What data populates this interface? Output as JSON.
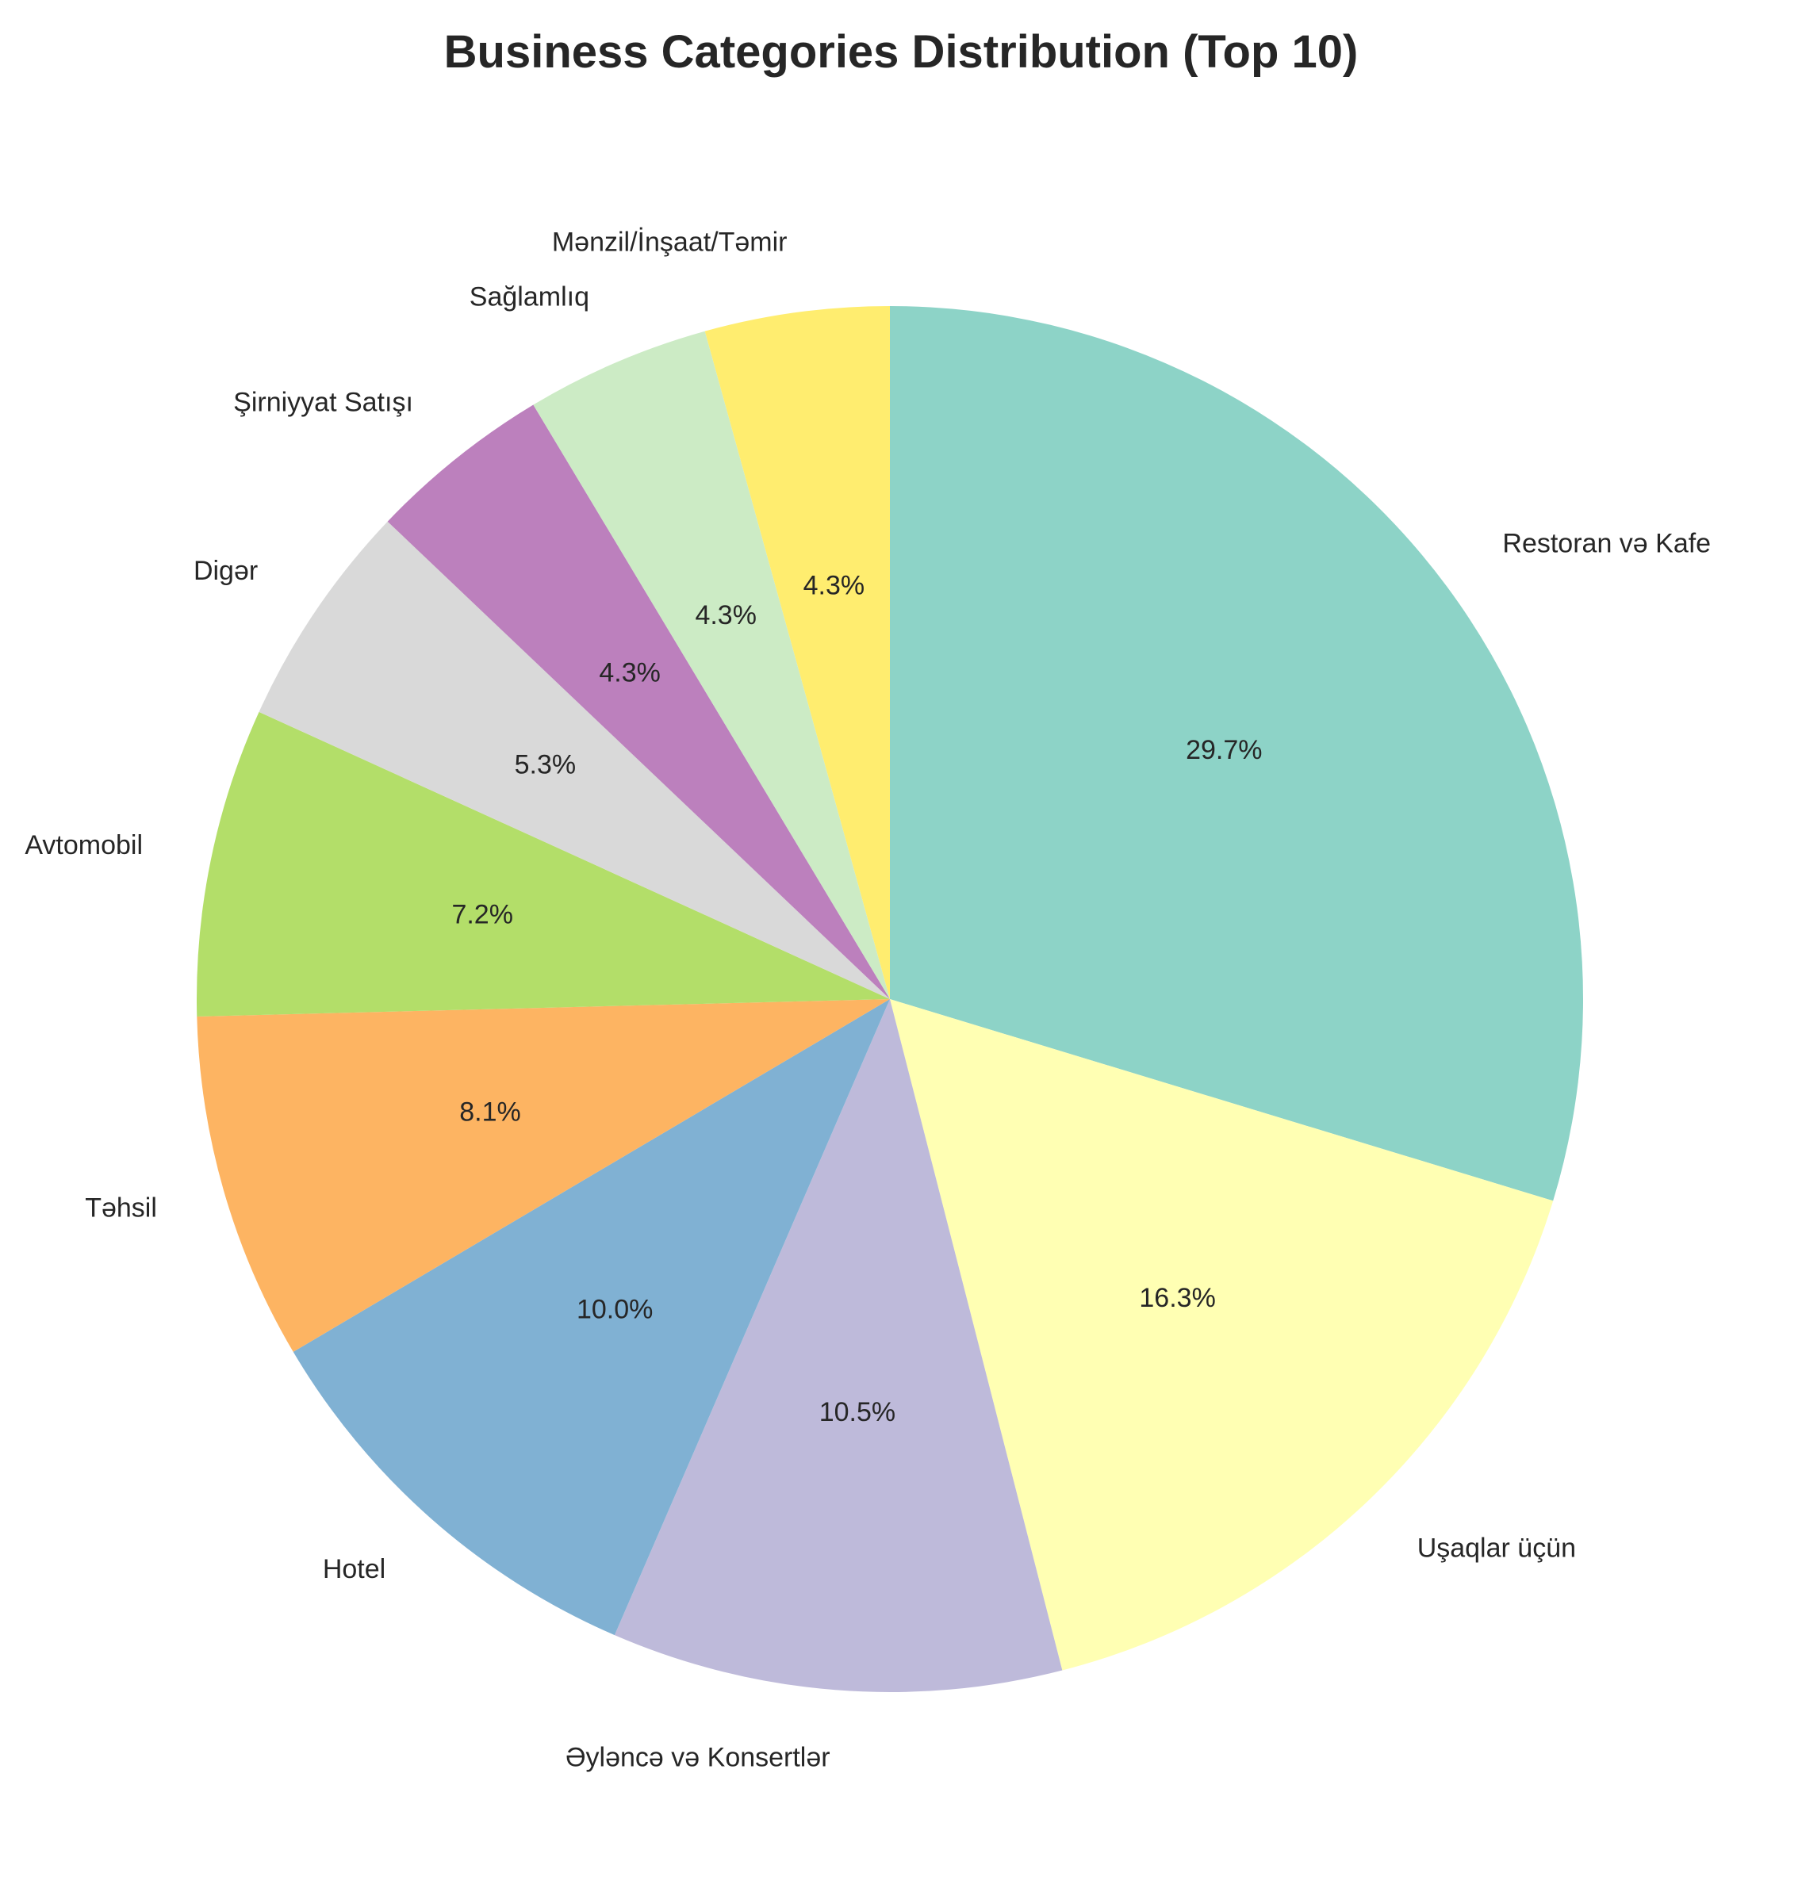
{
  "chart_data": {
    "type": "pie",
    "title": "Business Categories Distribution (Top 10)",
    "start_angle_deg": 90,
    "direction": "clockwise",
    "slices": [
      {
        "label": "Restoran və Kafe",
        "value": 29.7,
        "pct_label": "29.7%",
        "color": "#8dd3c7"
      },
      {
        "label": "Uşaqlar üçün",
        "value": 16.3,
        "pct_label": "16.3%",
        "color": "#ffffb3"
      },
      {
        "label": "Əyləncə və Konsertlər",
        "value": 10.5,
        "pct_label": "10.5%",
        "color": "#bebada"
      },
      {
        "label": "Hotel",
        "value": 10.0,
        "pct_label": "10.0%",
        "color": "#80b1d3"
      },
      {
        "label": "Təhsil",
        "value": 8.1,
        "pct_label": "8.1%",
        "color": "#fdb462"
      },
      {
        "label": "Avtomobil",
        "value": 7.2,
        "pct_label": "7.2%",
        "color": "#b3de69"
      },
      {
        "label": "Digər",
        "value": 5.3,
        "pct_label": "5.3%",
        "color": "#d9d9d9"
      },
      {
        "label": "Şirniyyat Satışı",
        "value": 4.3,
        "pct_label": "4.3%",
        "color": "#bc80bd"
      },
      {
        "label": "Sağlamlıq",
        "value": 4.3,
        "pct_label": "4.3%",
        "color": "#ccebc5"
      },
      {
        "label": "Mənzil/İnşaat/Təmir",
        "value": 4.3,
        "pct_label": "4.3%",
        "color": "#ffed6f"
      }
    ]
  }
}
